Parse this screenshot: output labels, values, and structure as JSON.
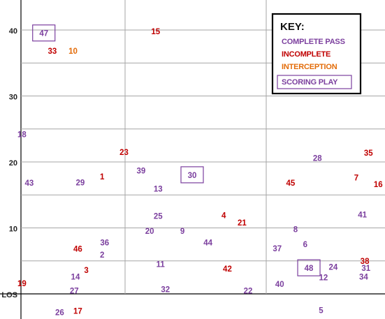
{
  "colors": {
    "complete": "#7b3f9e",
    "incomplete": "#c00000",
    "interception": "#e36c09",
    "scoring_box": "#7b3f9e",
    "grid": "#a6a6a6",
    "axis": "#000000"
  },
  "chart_data": {
    "type": "scatter",
    "title": "",
    "xlabel": "",
    "ylabel": "",
    "ylim": [
      -3,
      43
    ],
    "y_ticks": [
      {
        "label": "40",
        "value": 40
      },
      {
        "label": "30",
        "value": 30
      },
      {
        "label": "20",
        "value": 20
      },
      {
        "label": "10",
        "value": 10
      },
      {
        "label": "LOS",
        "value": 0
      }
    ],
    "grid": true,
    "legend": {
      "placement": "top-right",
      "title": "KEY:",
      "entries": [
        {
          "label": "COMPLETE PASS",
          "category": "complete"
        },
        {
          "label": "INCOMPLETE",
          "category": "incomplete"
        },
        {
          "label": "INTERCEPTION",
          "category": "interception"
        },
        {
          "label": "SCORING PLAY",
          "category": "scoring"
        }
      ]
    },
    "points": [
      {
        "label": "47",
        "x": 2.8,
        "y": 39.5,
        "result": "complete",
        "scoring": true
      },
      {
        "label": "33",
        "x": 3.5,
        "y": 36.8,
        "result": "incomplete"
      },
      {
        "label": "10",
        "x": 5.2,
        "y": 36.8,
        "result": "interception"
      },
      {
        "label": "15",
        "x": 12.0,
        "y": 39.8,
        "result": "incomplete"
      },
      {
        "label": "18",
        "x": 1.0,
        "y": 24.2,
        "result": "complete"
      },
      {
        "label": "23",
        "x": 9.4,
        "y": 21.5,
        "result": "incomplete"
      },
      {
        "label": "43",
        "x": 1.6,
        "y": 16.8,
        "result": "complete"
      },
      {
        "label": "29",
        "x": 5.8,
        "y": 16.9,
        "result": "complete"
      },
      {
        "label": "1",
        "x": 7.6,
        "y": 17.8,
        "result": "incomplete"
      },
      {
        "label": "39",
        "x": 10.8,
        "y": 18.7,
        "result": "complete"
      },
      {
        "label": "30",
        "x": 15.0,
        "y": 18.0,
        "result": "complete",
        "scoring": true
      },
      {
        "label": "13",
        "x": 12.2,
        "y": 15.9,
        "result": "complete"
      },
      {
        "label": "25",
        "x": 12.2,
        "y": 11.8,
        "result": "complete"
      },
      {
        "label": "20",
        "x": 11.5,
        "y": 9.5,
        "result": "complete"
      },
      {
        "label": "9",
        "x": 14.2,
        "y": 9.5,
        "result": "complete"
      },
      {
        "label": "4",
        "x": 17.6,
        "y": 11.9,
        "result": "incomplete"
      },
      {
        "label": "21",
        "x": 19.1,
        "y": 10.8,
        "result": "incomplete"
      },
      {
        "label": "44",
        "x": 16.3,
        "y": 7.8,
        "result": "complete"
      },
      {
        "label": "36",
        "x": 7.8,
        "y": 7.8,
        "result": "complete"
      },
      {
        "label": "46",
        "x": 5.6,
        "y": 6.8,
        "result": "incomplete"
      },
      {
        "label": "2",
        "x": 7.6,
        "y": 5.9,
        "result": "complete"
      },
      {
        "label": "11",
        "x": 12.4,
        "y": 4.5,
        "result": "complete"
      },
      {
        "label": "42",
        "x": 17.9,
        "y": 3.8,
        "result": "incomplete"
      },
      {
        "label": "3",
        "x": 6.3,
        "y": 3.6,
        "result": "incomplete"
      },
      {
        "label": "14",
        "x": 5.4,
        "y": 2.6,
        "result": "complete"
      },
      {
        "label": "19",
        "x": 1.0,
        "y": 1.6,
        "result": "incomplete"
      },
      {
        "label": "27",
        "x": 5.3,
        "y": 0.5,
        "result": "complete"
      },
      {
        "label": "32",
        "x": 12.8,
        "y": 0.7,
        "result": "complete"
      },
      {
        "label": "22",
        "x": 19.6,
        "y": 0.5,
        "result": "complete"
      },
      {
        "label": "26",
        "x": 4.1,
        "y": -2.8,
        "result": "complete"
      },
      {
        "label": "17",
        "x": 5.6,
        "y": -2.6,
        "result": "incomplete"
      },
      {
        "label": "28",
        "x": 25.3,
        "y": 20.6,
        "result": "complete"
      },
      {
        "label": "35",
        "x": 29.5,
        "y": 21.4,
        "result": "incomplete"
      },
      {
        "label": "45",
        "x": 23.1,
        "y": 16.8,
        "result": "incomplete"
      },
      {
        "label": "7",
        "x": 28.5,
        "y": 17.6,
        "result": "incomplete"
      },
      {
        "label": "16",
        "x": 30.3,
        "y": 16.6,
        "result": "incomplete"
      },
      {
        "label": "41",
        "x": 29.0,
        "y": 12.0,
        "result": "complete"
      },
      {
        "label": "8",
        "x": 23.5,
        "y": 9.8,
        "result": "complete"
      },
      {
        "label": "37",
        "x": 22.0,
        "y": 6.9,
        "result": "complete"
      },
      {
        "label": "6",
        "x": 24.3,
        "y": 7.5,
        "result": "complete"
      },
      {
        "label": "38",
        "x": 29.2,
        "y": 5.0,
        "result": "incomplete"
      },
      {
        "label": "48",
        "x": 24.6,
        "y": 3.9,
        "result": "complete",
        "scoring": true
      },
      {
        "label": "24",
        "x": 26.6,
        "y": 4.1,
        "result": "complete"
      },
      {
        "label": "31",
        "x": 29.3,
        "y": 3.9,
        "result": "complete"
      },
      {
        "label": "12",
        "x": 25.8,
        "y": 2.5,
        "result": "complete"
      },
      {
        "label": "34",
        "x": 29.1,
        "y": 2.6,
        "result": "complete"
      },
      {
        "label": "40",
        "x": 22.2,
        "y": 1.5,
        "result": "complete"
      },
      {
        "label": "5",
        "x": 25.6,
        "y": -2.5,
        "result": "complete"
      }
    ]
  }
}
